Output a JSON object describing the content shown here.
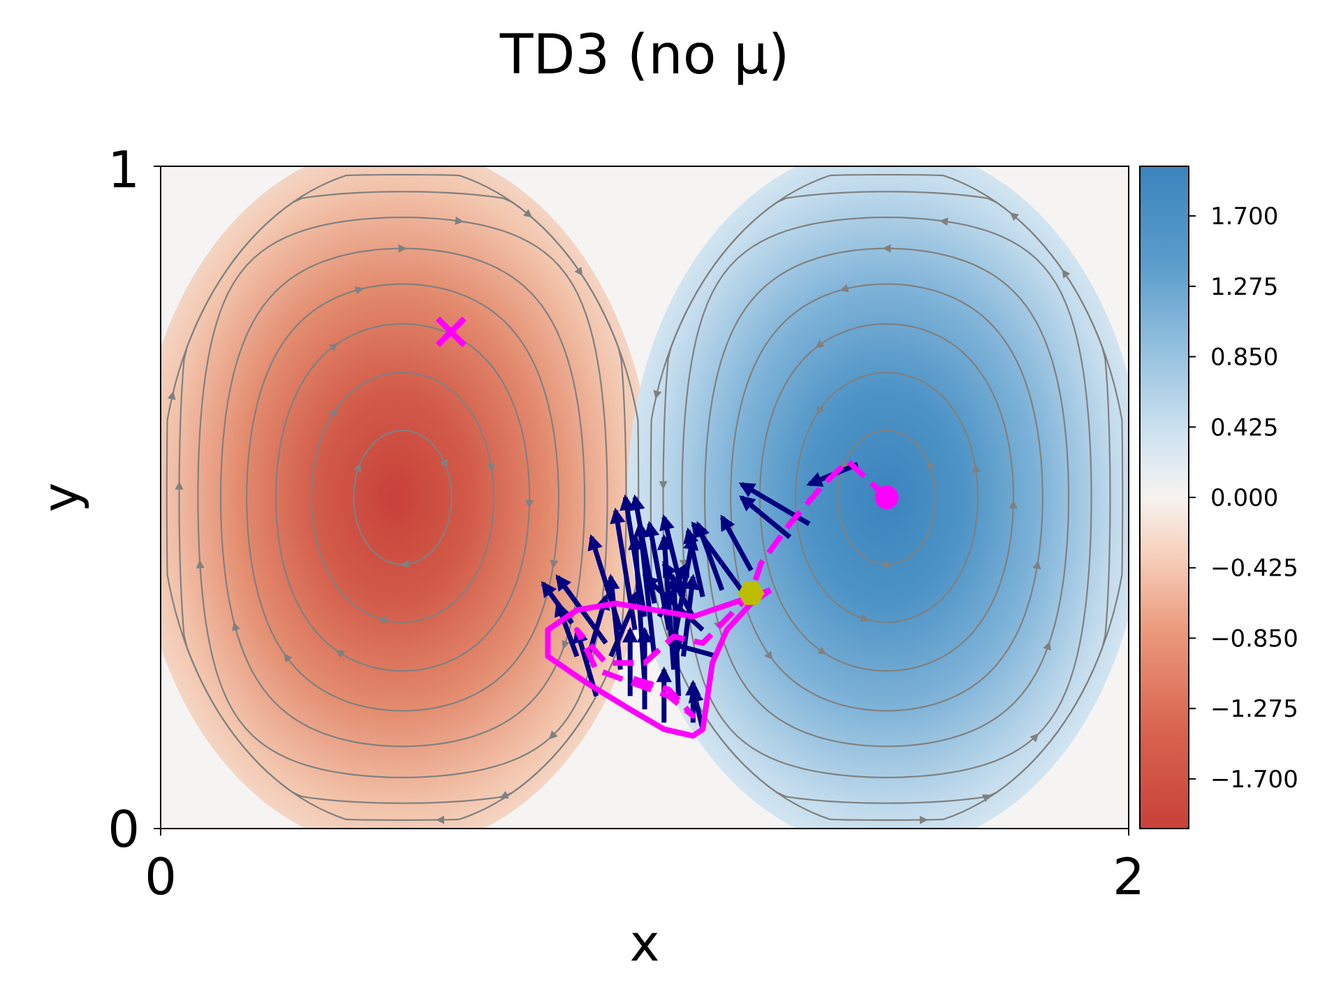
{
  "chart_data": {
    "type": "heatmap",
    "title": "TD3 (no μ)",
    "xlabel": "x",
    "ylabel": "y",
    "xlim": [
      0,
      2
    ],
    "ylim": [
      0,
      1
    ],
    "x_ticks": [
      "0",
      "2"
    ],
    "y_ticks": [
      "0",
      "1"
    ],
    "field": "double-gyre stream function (streamlines in grey, vorticity colour field)",
    "colormap": {
      "low": "#c8413a",
      "mid": "#f6f3ef",
      "high": "#3b84bd"
    },
    "colorbar": {
      "range": [
        -2.0,
        2.0
      ],
      "ticks": [
        "1.700",
        "1.275",
        "0.850",
        "0.425",
        "0.000",
        "−0.425",
        "−0.850",
        "−1.275",
        "−1.700"
      ],
      "tick_values": [
        1.7,
        1.275,
        0.85,
        0.425,
        0.0,
        -0.425,
        -0.85,
        -1.275,
        -1.7
      ]
    },
    "markers": {
      "target": {
        "x": 0.6,
        "y": 0.75,
        "symbol": "X",
        "color": "#ff00ff"
      },
      "start": {
        "x": 1.5,
        "y": 0.5,
        "symbol": "circle",
        "color": "#ff00ff"
      },
      "checkpoint": {
        "x": 1.22,
        "y": 0.355,
        "symbol": "hexagon",
        "color": "#bdbd00"
      }
    },
    "trajectory": {
      "color": "#ff00ff",
      "style": "dashed",
      "points": [
        [
          1.5,
          0.5
        ],
        [
          1.42,
          0.555
        ],
        [
          1.37,
          0.52
        ],
        [
          1.3,
          0.46
        ],
        [
          1.24,
          0.4
        ],
        [
          1.22,
          0.355
        ],
        [
          1.12,
          0.28
        ],
        [
          1.06,
          0.29
        ],
        [
          1.0,
          0.25
        ],
        [
          0.92,
          0.25
        ],
        [
          0.86,
          0.3
        ],
        [
          0.9,
          0.24
        ],
        [
          1.05,
          0.2
        ],
        [
          1.1,
          0.17
        ],
        [
          1.05,
          0.21
        ],
        [
          0.96,
          0.23
        ]
      ]
    },
    "envelope": {
      "color": "#ff00ff",
      "points": [
        [
          1.26,
          0.36
        ],
        [
          1.22,
          0.34
        ],
        [
          1.17,
          0.3
        ],
        [
          1.14,
          0.25
        ],
        [
          1.13,
          0.2
        ],
        [
          1.12,
          0.15
        ],
        [
          1.1,
          0.14
        ],
        [
          1.04,
          0.15
        ],
        [
          0.97,
          0.18
        ],
        [
          0.88,
          0.22
        ],
        [
          0.8,
          0.26
        ],
        [
          0.8,
          0.3
        ],
        [
          0.86,
          0.33
        ],
        [
          0.94,
          0.34
        ],
        [
          1.02,
          0.33
        ],
        [
          1.1,
          0.32
        ],
        [
          1.18,
          0.34
        ],
        [
          1.26,
          0.36
        ]
      ]
    },
    "quiver": {
      "color": "#000080",
      "arrows": [
        [
          1.34,
          0.46,
          -0.14,
          0.06
        ],
        [
          1.44,
          0.55,
          -0.1,
          -0.03
        ],
        [
          1.3,
          0.44,
          -0.1,
          0.06
        ],
        [
          1.22,
          0.39,
          -0.06,
          0.08
        ],
        [
          1.2,
          0.36,
          -0.1,
          0.1
        ],
        [
          1.16,
          0.36,
          -0.05,
          0.1
        ],
        [
          1.12,
          0.35,
          -0.03,
          0.1
        ],
        [
          1.08,
          0.35,
          -0.04,
          0.12
        ],
        [
          1.02,
          0.34,
          -0.04,
          0.16
        ],
        [
          1.0,
          0.32,
          -0.04,
          0.18
        ],
        [
          1.05,
          0.3,
          -0.04,
          0.16
        ],
        [
          1.1,
          0.32,
          -0.06,
          0.08
        ],
        [
          1.12,
          0.3,
          -0.12,
          0.08
        ],
        [
          0.98,
          0.3,
          -0.04,
          0.18
        ],
        [
          0.95,
          0.3,
          -0.06,
          0.14
        ],
        [
          0.9,
          0.3,
          -0.08,
          0.08
        ],
        [
          0.85,
          0.31,
          -0.06,
          0.06
        ],
        [
          0.92,
          0.28,
          -0.1,
          0.1
        ],
        [
          0.86,
          0.26,
          -0.04,
          0.08
        ],
        [
          0.95,
          0.24,
          -0.02,
          0.14
        ],
        [
          1.0,
          0.22,
          -0.02,
          0.22
        ],
        [
          1.02,
          0.26,
          -0.03,
          0.2
        ],
        [
          1.06,
          0.24,
          -0.02,
          0.2
        ],
        [
          1.08,
          0.26,
          0.02,
          0.12
        ],
        [
          1.15,
          0.26,
          -0.1,
          0.02
        ],
        [
          1.0,
          0.18,
          0.0,
          0.12
        ],
        [
          0.97,
          0.2,
          0.0,
          0.1
        ],
        [
          0.9,
          0.2,
          -0.04,
          0.1
        ],
        [
          1.04,
          0.16,
          0.0,
          0.08
        ],
        [
          1.1,
          0.16,
          0.0,
          0.06
        ],
        [
          1.12,
          0.15,
          -0.02,
          0.06
        ],
        [
          1.07,
          0.2,
          -0.01,
          0.18
        ],
        [
          0.93,
          0.26,
          0.06,
          0.1
        ],
        [
          1.03,
          0.32,
          0.06,
          0.08
        ],
        [
          1.06,
          0.28,
          0.04,
          0.16
        ],
        [
          0.88,
          0.25,
          0.04,
          0.1
        ]
      ]
    }
  }
}
